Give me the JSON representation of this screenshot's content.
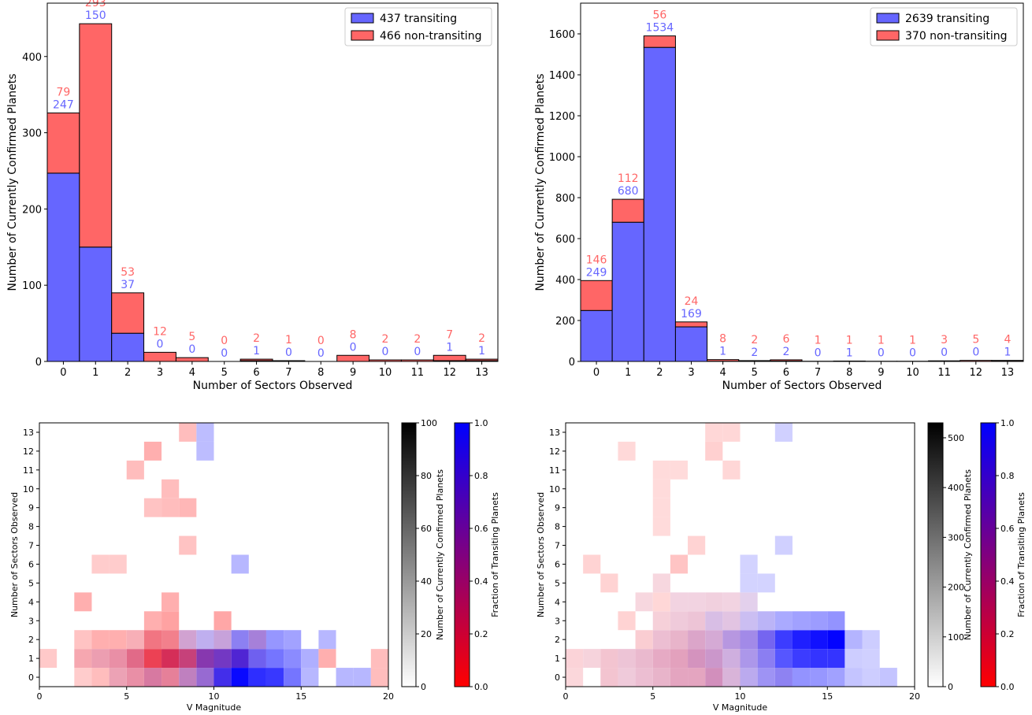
{
  "colors": {
    "transiting": "#6666ff",
    "non_transiting": "#ff6666",
    "edge": "#000000",
    "label_blue": "#6666ff",
    "label_red": "#ff6666"
  },
  "chart_data": [
    {
      "id": "hist_left",
      "type": "bar",
      "stacked": true,
      "xlabel": "Number of Sectors Observed",
      "ylabel": "Number of Currently Confirmed Planets",
      "categories": [
        "0",
        "1",
        "2",
        "3",
        "4",
        "5",
        "6",
        "7",
        "8",
        "9",
        "10",
        "11",
        "12",
        "13"
      ],
      "ylim": [
        0,
        470
      ],
      "yticks": [
        "0",
        "100",
        "200",
        "300",
        "400"
      ],
      "legend_position": "top-right",
      "series": [
        {
          "name": "437 transiting",
          "key": "transiting",
          "values": [
            247,
            150,
            37,
            0,
            0,
            0,
            1,
            0,
            0,
            0,
            0,
            0,
            1,
            1
          ]
        },
        {
          "name": "466 non-transiting",
          "key": "non_transiting",
          "values": [
            79,
            293,
            53,
            12,
            5,
            0,
            2,
            1,
            0,
            8,
            2,
            2,
            7,
            2
          ]
        }
      ]
    },
    {
      "id": "hist_right",
      "type": "bar",
      "stacked": true,
      "xlabel": "Number of Sectors Observed",
      "ylabel": "Number of Currently Confirmed Planets",
      "categories": [
        "0",
        "1",
        "2",
        "3",
        "4",
        "5",
        "6",
        "7",
        "8",
        "9",
        "10",
        "11",
        "12",
        "13"
      ],
      "ylim": [
        0,
        1750
      ],
      "yticks": [
        "0",
        "200",
        "400",
        "600",
        "800",
        "1000",
        "1200",
        "1400",
        "1600"
      ],
      "legend_position": "top-right",
      "series": [
        {
          "name": "2639 transiting",
          "key": "transiting",
          "values": [
            249,
            680,
            1534,
            169,
            1,
            2,
            2,
            0,
            1,
            0,
            0,
            0,
            0,
            1
          ]
        },
        {
          "name": "370 non-transiting",
          "key": "non_transiting",
          "values": [
            146,
            112,
            56,
            24,
            8,
            2,
            6,
            1,
            1,
            1,
            1,
            3,
            5,
            4
          ]
        }
      ]
    },
    {
      "id": "heatmap_left",
      "type": "heatmap",
      "xlabel": "V Magnitude",
      "ylabel": "Number of Sectors Observed",
      "xlim": [
        0,
        20
      ],
      "xticks": [
        "0",
        "5",
        "10",
        "15",
        "20"
      ],
      "ylim": [
        -0.5,
        13.5
      ],
      "yticks": [
        "0",
        "1",
        "2",
        "3",
        "4",
        "5",
        "6",
        "7",
        "8",
        "9",
        "10",
        "11",
        "12",
        "13"
      ],
      "count_colorbar": {
        "label": "Number of Currently Confirmed Planets",
        "range": [
          0,
          100
        ],
        "ticks": [
          "0",
          "20",
          "40",
          "60",
          "80",
          "100"
        ]
      },
      "fraction_colorbar": {
        "label": "Fraction of Transiting Planets",
        "range": [
          0,
          1
        ],
        "ticks": [
          "0.0",
          "0.2",
          "0.4",
          "0.6",
          "0.8",
          "1.0"
        ]
      },
      "cells": [
        {
          "x": 0,
          "y": 1,
          "n": 6,
          "f": 0
        },
        {
          "x": 2,
          "y": 0,
          "n": 5,
          "f": 0
        },
        {
          "x": 2,
          "y": 1,
          "n": 18,
          "f": 0.1
        },
        {
          "x": 2,
          "y": 2,
          "n": 8,
          "f": 0
        },
        {
          "x": 2,
          "y": 4,
          "n": 15,
          "f": 0
        },
        {
          "x": 3,
          "y": 0,
          "n": 10,
          "f": 0
        },
        {
          "x": 3,
          "y": 1,
          "n": 22,
          "f": 0.2
        },
        {
          "x": 3,
          "y": 2,
          "n": 15,
          "f": 0
        },
        {
          "x": 3,
          "y": 6,
          "n": 5,
          "f": 0
        },
        {
          "x": 4,
          "y": 0,
          "n": 20,
          "f": 0.2
        },
        {
          "x": 4,
          "y": 1,
          "n": 28,
          "f": 0.2
        },
        {
          "x": 4,
          "y": 2,
          "n": 15,
          "f": 0
        },
        {
          "x": 4,
          "y": 6,
          "n": 5,
          "f": 0
        },
        {
          "x": 5,
          "y": 0,
          "n": 28,
          "f": 0.2
        },
        {
          "x": 5,
          "y": 1,
          "n": 45,
          "f": 0.2
        },
        {
          "x": 5,
          "y": 2,
          "n": 15,
          "f": 0.1
        },
        {
          "x": 5,
          "y": 11,
          "n": 10,
          "f": 0
        },
        {
          "x": 6,
          "y": 0,
          "n": 38,
          "f": 0.3
        },
        {
          "x": 6,
          "y": 1,
          "n": 65,
          "f": 0.1
        },
        {
          "x": 6,
          "y": 2,
          "n": 40,
          "f": 0.1
        },
        {
          "x": 6,
          "y": 3,
          "n": 15,
          "f": 0
        },
        {
          "x": 6,
          "y": 9,
          "n": 8,
          "f": 0
        },
        {
          "x": 6,
          "y": 12,
          "n": 15,
          "f": 0
        },
        {
          "x": 7,
          "y": 0,
          "n": 35,
          "f": 0.2
        },
        {
          "x": 7,
          "y": 1,
          "n": 75,
          "f": 0.2
        },
        {
          "x": 7,
          "y": 2,
          "n": 35,
          "f": 0.1
        },
        {
          "x": 7,
          "y": 3,
          "n": 20,
          "f": 0
        },
        {
          "x": 7,
          "y": 4,
          "n": 15,
          "f": 0
        },
        {
          "x": 7,
          "y": 9,
          "n": 10,
          "f": 0
        },
        {
          "x": 7,
          "y": 10,
          "n": 10,
          "f": 0
        },
        {
          "x": 8,
          "y": 0,
          "n": 35,
          "f": 0.5
        },
        {
          "x": 8,
          "y": 1,
          "n": 65,
          "f": 0.3
        },
        {
          "x": 8,
          "y": 2,
          "n": 20,
          "f": 0.5
        },
        {
          "x": 8,
          "y": 7,
          "n": 8,
          "f": 0
        },
        {
          "x": 8,
          "y": 9,
          "n": 12,
          "f": 0
        },
        {
          "x": 8,
          "y": 13,
          "n": 10,
          "f": 0
        },
        {
          "x": 9,
          "y": 0,
          "n": 45,
          "f": 0.7
        },
        {
          "x": 9,
          "y": 1,
          "n": 70,
          "f": 0.6
        },
        {
          "x": 9,
          "y": 2,
          "n": 15,
          "f": 0.8
        },
        {
          "x": 9,
          "y": 13,
          "n": 10,
          "f": 1
        },
        {
          "x": 9,
          "y": 12,
          "n": 10,
          "f": 1
        },
        {
          "x": 10,
          "y": 0,
          "n": 75,
          "f": 0.9
        },
        {
          "x": 10,
          "y": 1,
          "n": 70,
          "f": 0.7
        },
        {
          "x": 10,
          "y": 2,
          "n": 20,
          "f": 0.6
        },
        {
          "x": 10,
          "y": 3,
          "n": 18,
          "f": 0
        },
        {
          "x": 11,
          "y": 0,
          "n": 95,
          "f": 1
        },
        {
          "x": 11,
          "y": 1,
          "n": 80,
          "f": 0.8
        },
        {
          "x": 11,
          "y": 2,
          "n": 35,
          "f": 0.9
        },
        {
          "x": 11,
          "y": 6,
          "n": 12,
          "f": 1
        },
        {
          "x": 12,
          "y": 0,
          "n": 75,
          "f": 1
        },
        {
          "x": 12,
          "y": 1,
          "n": 50,
          "f": 0.9
        },
        {
          "x": 12,
          "y": 2,
          "n": 35,
          "f": 0.7
        },
        {
          "x": 13,
          "y": 0,
          "n": 70,
          "f": 1
        },
        {
          "x": 13,
          "y": 1,
          "n": 40,
          "f": 1
        },
        {
          "x": 13,
          "y": 2,
          "n": 25,
          "f": 1
        },
        {
          "x": 14,
          "y": 0,
          "n": 40,
          "f": 1
        },
        {
          "x": 14,
          "y": 1,
          "n": 30,
          "f": 1
        },
        {
          "x": 14,
          "y": 2,
          "n": 20,
          "f": 1
        },
        {
          "x": 15,
          "y": 0,
          "n": 12,
          "f": 1
        },
        {
          "x": 15,
          "y": 1,
          "n": 15,
          "f": 1
        },
        {
          "x": 16,
          "y": 1,
          "n": 15,
          "f": 0
        },
        {
          "x": 16,
          "y": 2,
          "n": 12,
          "f": 1
        },
        {
          "x": 17,
          "y": 0,
          "n": 12,
          "f": 1
        },
        {
          "x": 18,
          "y": 0,
          "n": 12,
          "f": 1
        },
        {
          "x": 19,
          "y": 0,
          "n": 10,
          "f": 0
        },
        {
          "x": 19,
          "y": 1,
          "n": 10,
          "f": 0
        }
      ]
    },
    {
      "id": "heatmap_right",
      "type": "heatmap",
      "xlabel": "V Magnitude",
      "ylabel": "Number of Sectors Observed",
      "xlim": [
        0,
        20
      ],
      "xticks": [
        "0",
        "5",
        "10",
        "15",
        "20"
      ],
      "ylim": [
        -0.5,
        13.5
      ],
      "yticks": [
        "0",
        "1",
        "2",
        "3",
        "4",
        "5",
        "6",
        "7",
        "8",
        "9",
        "10",
        "11",
        "12",
        "13"
      ],
      "count_colorbar": {
        "label": "Number of Currently Confirmed Planets",
        "range": [
          0,
          530
        ],
        "ticks": [
          "0",
          "100",
          "200",
          "300",
          "400",
          "500"
        ]
      },
      "fraction_colorbar": {
        "label": "Fraction of Transiting Planets",
        "range": [
          0,
          1
        ],
        "ticks": [
          "0.0",
          "0.2",
          "0.4",
          "0.6",
          "0.8",
          "1.0"
        ]
      },
      "cells": [
        {
          "x": 0,
          "y": 0,
          "n": 10,
          "f": 0.1
        },
        {
          "x": 0,
          "y": 1,
          "n": 15,
          "f": 0.1
        },
        {
          "x": 1,
          "y": 1,
          "n": 15,
          "f": 0.2
        },
        {
          "x": 1,
          "y": 6,
          "n": 15,
          "f": 0
        },
        {
          "x": 2,
          "y": 0,
          "n": 40,
          "f": 0.2
        },
        {
          "x": 2,
          "y": 1,
          "n": 40,
          "f": 0.2
        },
        {
          "x": 2,
          "y": 5,
          "n": 15,
          "f": 0
        },
        {
          "x": 3,
          "y": 0,
          "n": 30,
          "f": 0.3
        },
        {
          "x": 3,
          "y": 1,
          "n": 40,
          "f": 0.3
        },
        {
          "x": 3,
          "y": 3,
          "n": 15,
          "f": 0
        },
        {
          "x": 3,
          "y": 12,
          "n": 8,
          "f": 0
        },
        {
          "x": 4,
          "y": 0,
          "n": 50,
          "f": 0.3
        },
        {
          "x": 4,
          "y": 1,
          "n": 60,
          "f": 0.3
        },
        {
          "x": 4,
          "y": 2,
          "n": 25,
          "f": 0.1
        },
        {
          "x": 4,
          "y": 4,
          "n": 10,
          "f": 0.2
        },
        {
          "x": 5,
          "y": 0,
          "n": 70,
          "f": 0.3
        },
        {
          "x": 5,
          "y": 1,
          "n": 90,
          "f": 0.3
        },
        {
          "x": 5,
          "y": 2,
          "n": 50,
          "f": 0.3
        },
        {
          "x": 5,
          "y": 3,
          "n": 20,
          "f": 0.2
        },
        {
          "x": 5,
          "y": 4,
          "n": 10,
          "f": 0
        },
        {
          "x": 5,
          "y": 5,
          "n": 10,
          "f": 0.2
        },
        {
          "x": 5,
          "y": 8,
          "n": 5,
          "f": 0
        },
        {
          "x": 5,
          "y": 9,
          "n": 5,
          "f": 0
        },
        {
          "x": 5,
          "y": 10,
          "n": 5,
          "f": 0
        },
        {
          "x": 5,
          "y": 11,
          "n": 5,
          "f": 0
        },
        {
          "x": 6,
          "y": 0,
          "n": 100,
          "f": 0.3
        },
        {
          "x": 6,
          "y": 1,
          "n": 110,
          "f": 0.3
        },
        {
          "x": 6,
          "y": 2,
          "n": 70,
          "f": 0.3
        },
        {
          "x": 6,
          "y": 3,
          "n": 30,
          "f": 0.3
        },
        {
          "x": 6,
          "y": 4,
          "n": 15,
          "f": 0.3
        },
        {
          "x": 6,
          "y": 6,
          "n": 40,
          "f": 0
        },
        {
          "x": 6,
          "y": 11,
          "n": 5,
          "f": 0
        },
        {
          "x": 7,
          "y": 0,
          "n": 100,
          "f": 0.3
        },
        {
          "x": 7,
          "y": 1,
          "n": 140,
          "f": 0.4
        },
        {
          "x": 7,
          "y": 2,
          "n": 100,
          "f": 0.4
        },
        {
          "x": 7,
          "y": 3,
          "n": 40,
          "f": 0.3
        },
        {
          "x": 7,
          "y": 4,
          "n": 15,
          "f": 0.3
        },
        {
          "x": 7,
          "y": 7,
          "n": 15,
          "f": 0
        },
        {
          "x": 8,
          "y": 0,
          "n": 150,
          "f": 0.4
        },
        {
          "x": 8,
          "y": 1,
          "n": 130,
          "f": 0.5
        },
        {
          "x": 8,
          "y": 2,
          "n": 90,
          "f": 0.5
        },
        {
          "x": 8,
          "y": 3,
          "n": 50,
          "f": 0.6
        },
        {
          "x": 8,
          "y": 4,
          "n": 20,
          "f": 0.3
        },
        {
          "x": 8,
          "y": 12,
          "n": 20,
          "f": 0
        },
        {
          "x": 8,
          "y": 13,
          "n": 10,
          "f": 0
        },
        {
          "x": 9,
          "y": 0,
          "n": 70,
          "f": 0.5
        },
        {
          "x": 9,
          "y": 1,
          "n": 80,
          "f": 0.6
        },
        {
          "x": 9,
          "y": 2,
          "n": 130,
          "f": 0.7
        },
        {
          "x": 9,
          "y": 3,
          "n": 40,
          "f": 0.5
        },
        {
          "x": 9,
          "y": 4,
          "n": 15,
          "f": 0.3
        },
        {
          "x": 9,
          "y": 11,
          "n": 10,
          "f": 0
        },
        {
          "x": 9,
          "y": 13,
          "n": 10,
          "f": 0
        },
        {
          "x": 10,
          "y": 0,
          "n": 90,
          "f": 0.8
        },
        {
          "x": 10,
          "y": 1,
          "n": 130,
          "f": 0.8
        },
        {
          "x": 10,
          "y": 2,
          "n": 160,
          "f": 0.8
        },
        {
          "x": 10,
          "y": 3,
          "n": 50,
          "f": 0.8
        },
        {
          "x": 10,
          "y": 4,
          "n": 20,
          "f": 0.6
        },
        {
          "x": 10,
          "y": 5,
          "n": 15,
          "f": 1
        },
        {
          "x": 10,
          "y": 6,
          "n": 15,
          "f": 1
        },
        {
          "x": 11,
          "y": 0,
          "n": 140,
          "f": 0.9
        },
        {
          "x": 11,
          "y": 1,
          "n": 190,
          "f": 0.9
        },
        {
          "x": 11,
          "y": 2,
          "n": 250,
          "f": 0.9
        },
        {
          "x": 11,
          "y": 3,
          "n": 70,
          "f": 0.9
        },
        {
          "x": 11,
          "y": 5,
          "n": 15,
          "f": 1
        },
        {
          "x": 12,
          "y": 0,
          "n": 180,
          "f": 0.9
        },
        {
          "x": 12,
          "y": 1,
          "n": 290,
          "f": 1
        },
        {
          "x": 12,
          "y": 2,
          "n": 360,
          "f": 1
        },
        {
          "x": 12,
          "y": 3,
          "n": 90,
          "f": 1
        },
        {
          "x": 12,
          "y": 7,
          "n": 20,
          "f": 1
        },
        {
          "x": 12,
          "y": 13,
          "n": 20,
          "f": 1
        },
        {
          "x": 13,
          "y": 0,
          "n": 140,
          "f": 1
        },
        {
          "x": 13,
          "y": 1,
          "n": 360,
          "f": 1
        },
        {
          "x": 13,
          "y": 2,
          "n": 440,
          "f": 1
        },
        {
          "x": 13,
          "y": 3,
          "n": 110,
          "f": 1
        },
        {
          "x": 14,
          "y": 0,
          "n": 130,
          "f": 1
        },
        {
          "x": 14,
          "y": 1,
          "n": 380,
          "f": 1
        },
        {
          "x": 14,
          "y": 2,
          "n": 480,
          "f": 1
        },
        {
          "x": 14,
          "y": 3,
          "n": 120,
          "f": 1
        },
        {
          "x": 15,
          "y": 0,
          "n": 110,
          "f": 1
        },
        {
          "x": 15,
          "y": 1,
          "n": 380,
          "f": 1
        },
        {
          "x": 15,
          "y": 2,
          "n": 520,
          "f": 1
        },
        {
          "x": 15,
          "y": 3,
          "n": 140,
          "f": 1
        },
        {
          "x": 16,
          "y": 0,
          "n": 40,
          "f": 1
        },
        {
          "x": 16,
          "y": 1,
          "n": 25,
          "f": 1
        },
        {
          "x": 16,
          "y": 2,
          "n": 70,
          "f": 1
        },
        {
          "x": 17,
          "y": 0,
          "n": 25,
          "f": 1
        },
        {
          "x": 17,
          "y": 1,
          "n": 20,
          "f": 1
        },
        {
          "x": 17,
          "y": 2,
          "n": 25,
          "f": 1
        },
        {
          "x": 18,
          "y": 0,
          "n": 40,
          "f": 1
        }
      ]
    }
  ]
}
